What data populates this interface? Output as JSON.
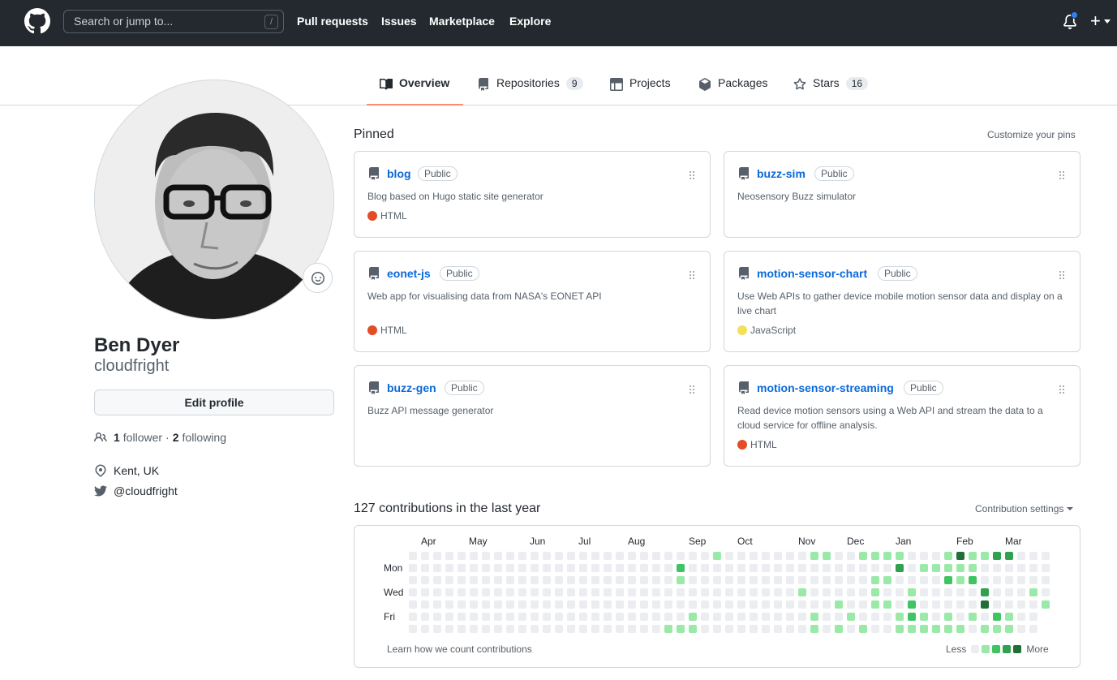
{
  "header": {
    "search_placeholder": "Search or jump to...",
    "search_shortcut": "/",
    "nav": [
      "Pull requests",
      "Issues",
      "Marketplace",
      "Explore"
    ],
    "plus_label": "+"
  },
  "tabs": [
    {
      "label": "Overview",
      "count": null,
      "icon": "book-icon",
      "active": true
    },
    {
      "label": "Repositories",
      "count": "9",
      "icon": "repo-icon",
      "active": false
    },
    {
      "label": "Projects",
      "count": null,
      "icon": "table-icon",
      "active": false
    },
    {
      "label": "Packages",
      "count": null,
      "icon": "package-icon",
      "active": false
    },
    {
      "label": "Stars",
      "count": "16",
      "icon": "star-icon",
      "active": false
    }
  ],
  "profile": {
    "name": "Ben Dyer",
    "login": "cloudfright",
    "edit_label": "Edit profile",
    "followers": "1",
    "followers_label": "follower",
    "separator": "·",
    "following": "2",
    "following_label": "following",
    "location": "Kent, UK",
    "twitter": "@cloudfright"
  },
  "pinned": {
    "title": "Pinned",
    "customize": "Customize your pins",
    "repos": [
      {
        "name": "blog",
        "visibility": "Public",
        "description": "Blog based on Hugo static site generator",
        "language": "HTML",
        "lang_color": "#e34c26"
      },
      {
        "name": "buzz-sim",
        "visibility": "Public",
        "description": "Neosensory Buzz simulator",
        "language": "",
        "lang_color": ""
      },
      {
        "name": "eonet-js",
        "visibility": "Public",
        "description": "Web app for visualising data from NASA's EONET API",
        "language": "HTML",
        "lang_color": "#e34c26"
      },
      {
        "name": "motion-sensor-chart",
        "visibility": "Public",
        "description": "Use Web APIs to gather device mobile motion sensor data and display on a live chart",
        "language": "JavaScript",
        "lang_color": "#f1e05a"
      },
      {
        "name": "buzz-gen",
        "visibility": "Public",
        "description": "Buzz API message generator",
        "language": "",
        "lang_color": ""
      },
      {
        "name": "motion-sensor-streaming",
        "visibility": "Public",
        "description": "Read device motion sensors using a Web API and stream the data to a cloud service for offline analysis.",
        "language": "HTML",
        "lang_color": "#e34c26"
      }
    ]
  },
  "contributions": {
    "title": "127 contributions in the last year",
    "settings": "Contribution settings",
    "months": [
      "Apr",
      "May",
      "Jun",
      "Jul",
      "Aug",
      "Sep",
      "Oct",
      "Nov",
      "Dec",
      "Jan",
      "Feb",
      "Mar"
    ],
    "days": [
      "Mon",
      "Wed",
      "Fri"
    ],
    "learn": "Learn how we count contributions",
    "less": "Less",
    "more": "More",
    "colors": [
      "#ebedf0",
      "#9be9a8",
      "#40c463",
      "#30a14e",
      "#216e39"
    ]
  }
}
